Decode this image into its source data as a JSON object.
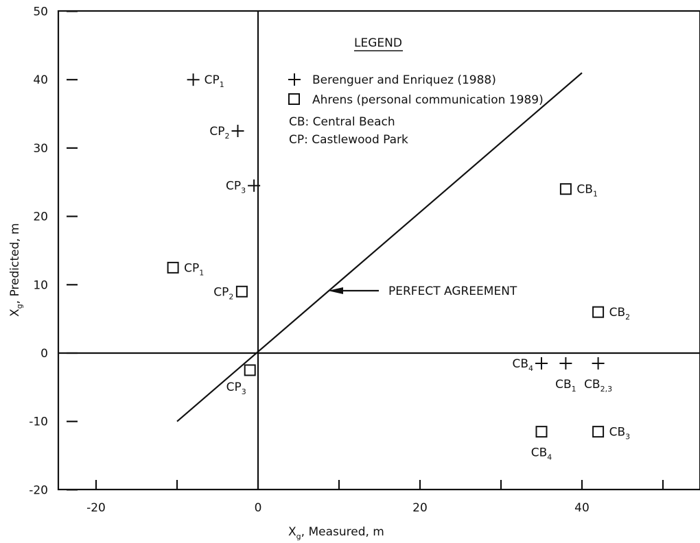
{
  "chart_data": {
    "type": "scatter",
    "title": "",
    "xlabel": "X",
    "xlabel_sub": "g",
    "xlabel_rest": ", Measured, m",
    "ylabel": "X",
    "ylabel_sub": "g",
    "ylabel_rest": ", Predicted, m",
    "xlim": [
      -25,
      55
    ],
    "ylim": [
      -20,
      50
    ],
    "x_ticks": [
      -20,
      -10,
      0,
      10,
      20,
      30,
      40,
      50
    ],
    "x_tick_labels": [
      "-20",
      "",
      "0",
      "",
      "20",
      "",
      "40",
      ""
    ],
    "y_ticks": [
      -20,
      -10,
      0,
      10,
      20,
      30,
      40,
      50
    ],
    "y_tick_labels": [
      "-20",
      "-10",
      "0",
      "10",
      "20",
      "30",
      "40",
      "50"
    ],
    "grid": false,
    "legend": {
      "title": "LEGEND",
      "placement": "top-center",
      "entries": [
        {
          "marker": "plus",
          "label": "Berenguer and Enriquez (1988)"
        },
        {
          "marker": "square",
          "label": "Ahrens (personal communication 1989)"
        }
      ],
      "notes": [
        "CB: Central Beach",
        "CP: Castlewood Park"
      ]
    },
    "reference_line": {
      "label": "PERFECT AGREEMENT",
      "x": [
        -10,
        40
      ],
      "y": [
        -10,
        41
      ]
    },
    "series": [
      {
        "name": "Berenguer and Enriquez (1988)",
        "marker": "plus",
        "points": [
          {
            "x": -8,
            "y": 40,
            "label": "CP",
            "sub": "1",
            "pos": "right"
          },
          {
            "x": -2.5,
            "y": 32.5,
            "label": "CP",
            "sub": "2",
            "pos": "left"
          },
          {
            "x": -0.5,
            "y": 24.5,
            "label": "CP",
            "sub": "3",
            "pos": "left"
          },
          {
            "x": 35,
            "y": -1.5,
            "label": "CB",
            "sub": "4",
            "pos": "left"
          },
          {
            "x": 38,
            "y": -1.5,
            "label": "CB",
            "sub": "1",
            "pos": "below"
          },
          {
            "x": 42,
            "y": -1.5,
            "label": "CB",
            "sub": "2,3",
            "pos": "below"
          }
        ]
      },
      {
        "name": "Ahrens (personal communication 1989)",
        "marker": "square",
        "points": [
          {
            "x": -10.5,
            "y": 12.5,
            "label": "CP",
            "sub": "1",
            "pos": "right"
          },
          {
            "x": -2,
            "y": 9,
            "label": "CP",
            "sub": "2",
            "pos": "left"
          },
          {
            "x": -1,
            "y": -2.5,
            "label": "CP",
            "sub": "3",
            "pos": "below-left"
          },
          {
            "x": 38,
            "y": 24,
            "label": "CB",
            "sub": "1",
            "pos": "right"
          },
          {
            "x": 42,
            "y": 6,
            "label": "CB",
            "sub": "2",
            "pos": "right"
          },
          {
            "x": 42,
            "y": -11.5,
            "label": "CB",
            "sub": "3",
            "pos": "right"
          },
          {
            "x": 35,
            "y": -11.5,
            "label": "CB",
            "sub": "4",
            "pos": "below"
          }
        ]
      }
    ]
  }
}
